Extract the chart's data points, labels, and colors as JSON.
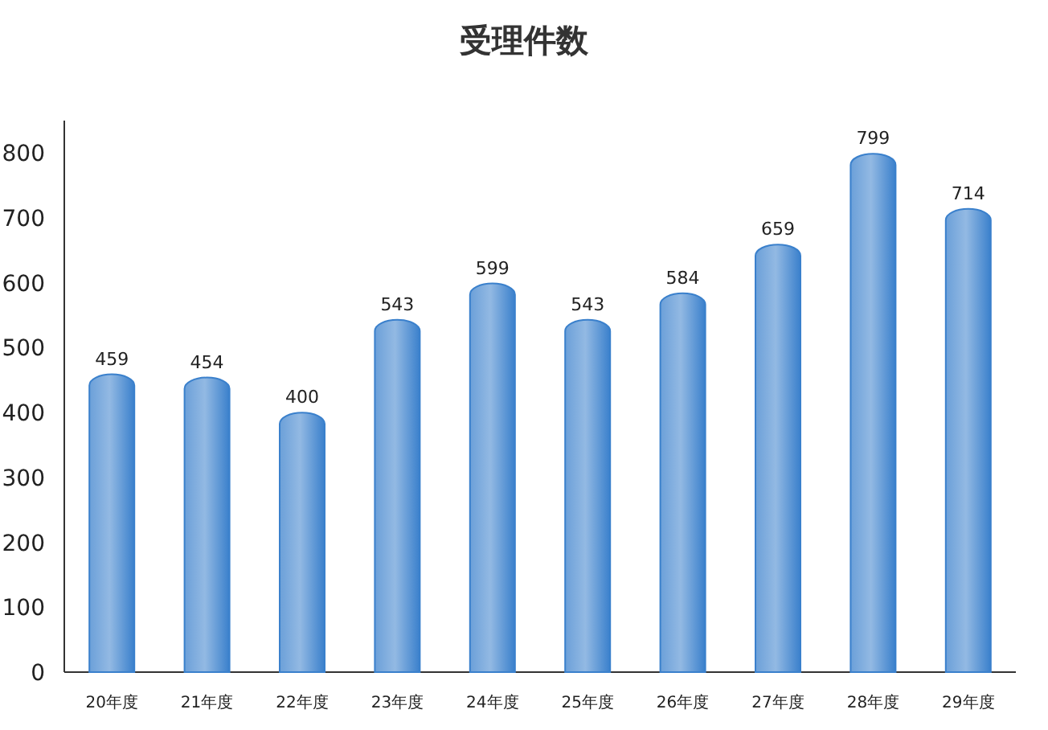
{
  "chart_data": {
    "type": "bar",
    "title": "受理件数",
    "categories": [
      "20年度",
      "21年度",
      "22年度",
      "23年度",
      "24年度",
      "25年度",
      "26年度",
      "27年度",
      "28年度",
      "29年度"
    ],
    "values": [
      459,
      454,
      400,
      543,
      599,
      543,
      584,
      659,
      799,
      714
    ],
    "color": "#3a80cc",
    "ylim": [
      0,
      850
    ],
    "yticks": [
      0,
      100,
      200,
      300,
      400,
      500,
      600,
      700,
      800
    ],
    "grid": false,
    "data_labels": true
  }
}
